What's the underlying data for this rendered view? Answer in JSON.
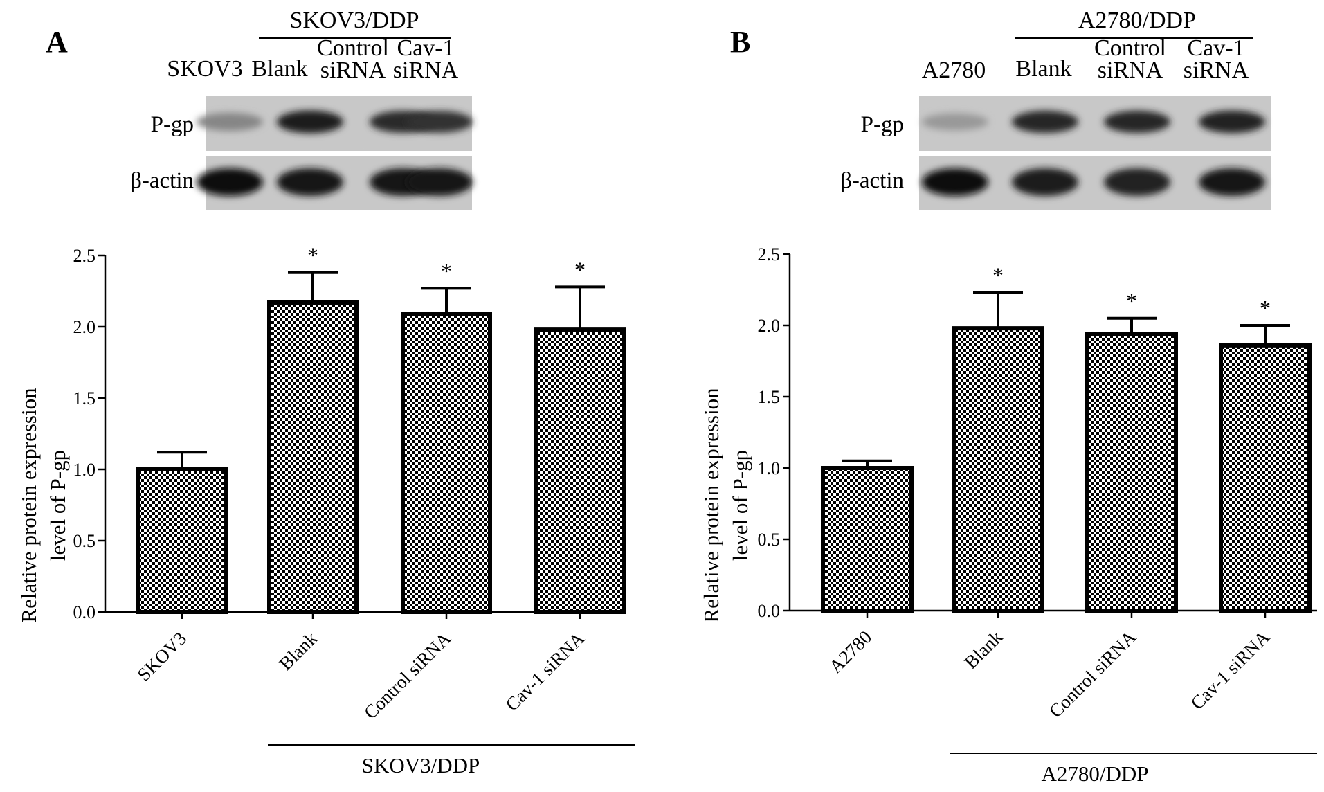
{
  "panels": [
    {
      "letter": "A",
      "blot": {
        "group_label": "SKOV3/DDP",
        "lanes": [
          {
            "line1": "",
            "line2": "SKOV3"
          },
          {
            "line1": "",
            "line2": "Blank"
          },
          {
            "line1": "Control",
            "line2": "siRNA"
          },
          {
            "line1": "Cav-1",
            "line2": "siRNA"
          }
        ],
        "rows": [
          "P-gp",
          "β-actin"
        ],
        "band_intensity": {
          "P-gp": [
            0.35,
            0.9,
            0.82,
            0.8
          ],
          "β-actin": [
            1.0,
            0.95,
            0.92,
            0.93
          ]
        }
      }
    },
    {
      "letter": "B",
      "blot": {
        "group_label": "A2780/DDP",
        "lanes": [
          {
            "line1": "",
            "line2": "A2780"
          },
          {
            "line1": "",
            "line2": "Blank"
          },
          {
            "line1": "Control",
            "line2": "siRNA"
          },
          {
            "line1": "Cav-1",
            "line2": "siRNA"
          }
        ],
        "rows": [
          "P-gp",
          "β-actin"
        ],
        "band_intensity": {
          "P-gp": [
            0.25,
            0.85,
            0.85,
            0.88
          ],
          "β-actin": [
            1.0,
            0.9,
            0.88,
            0.95
          ]
        }
      }
    }
  ],
  "chart_data": [
    {
      "type": "bar",
      "title": "",
      "xlabel": "",
      "ylabel_line1": "Relative protein expression",
      "ylabel_line2": "level of P-gp",
      "categories": [
        "SKOV3",
        "Blank",
        "Control siRNA",
        "Cav-1 siRNA"
      ],
      "values": [
        1.0,
        2.17,
        2.09,
        1.98
      ],
      "error": [
        0.12,
        0.21,
        0.18,
        0.3
      ],
      "significance": [
        "",
        "*",
        "*",
        "*"
      ],
      "ylim": [
        0,
        2.5
      ],
      "yticks": [
        "0.0",
        "0.5",
        "1.0",
        "1.5",
        "2.0",
        "2.5"
      ],
      "group_label": "SKOV3/DDP",
      "bar_fill": "checkered",
      "bar_color": "#000000"
    },
    {
      "type": "bar",
      "title": "",
      "xlabel": "",
      "ylabel_line1": "Relative protein expression",
      "ylabel_line2": "level of P-gp",
      "categories": [
        "A2780",
        "Blank",
        "Control siRNA",
        "Cav-1 siRNA"
      ],
      "values": [
        1.0,
        1.98,
        1.94,
        1.86
      ],
      "error": [
        0.05,
        0.25,
        0.11,
        0.14
      ],
      "significance": [
        "",
        "*",
        "*",
        "*"
      ],
      "ylim": [
        0,
        2.5
      ],
      "yticks": [
        "0.0",
        "0.5",
        "1.0",
        "1.5",
        "2.0",
        "2.5"
      ],
      "group_label": "A2780/DDP",
      "bar_fill": "checkered",
      "bar_color": "#000000"
    }
  ]
}
